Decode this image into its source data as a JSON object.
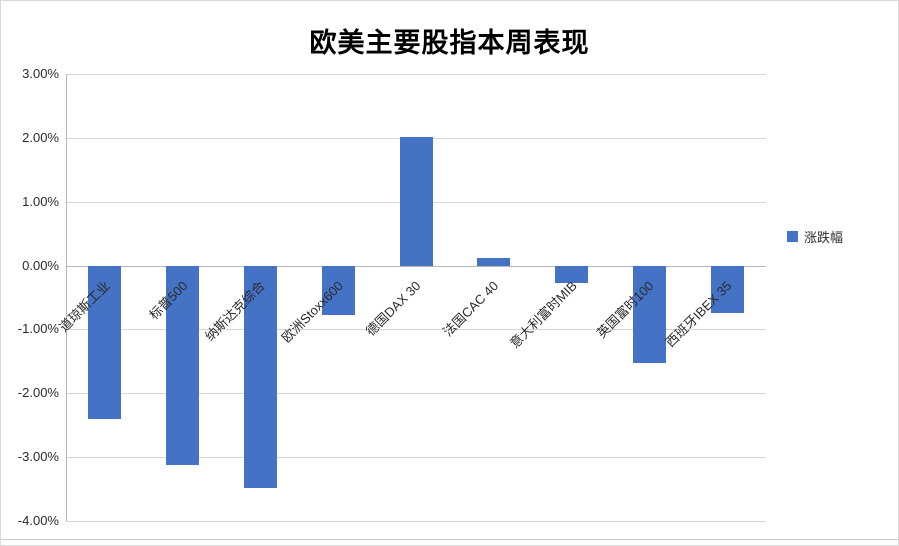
{
  "chart_data": {
    "type": "bar",
    "title": "欧美主要股指本周表现",
    "legend": "涨跌幅",
    "categories": [
      "道琼斯工业",
      "标普500",
      "纳斯达克综合",
      "欧洲Stoxx600",
      "德国DAX 30",
      "法国CAC 40",
      "意大利富时MIB",
      "英国富时100",
      "西班牙IBEX 35"
    ],
    "values": [
      -2.4,
      -3.12,
      -3.47,
      -0.76,
      2.02,
      0.12,
      -0.26,
      -1.52,
      -0.73
    ],
    "xlabel": "",
    "ylabel": "",
    "ylim": [
      -4,
      3
    ],
    "yticks": [
      3,
      2,
      1,
      0,
      -1,
      -2,
      -3,
      -4
    ],
    "ytick_labels": [
      "3.00%",
      "2.00%",
      "1.00%",
      "0.00%",
      "-1.00%",
      "-2.00%",
      "-3.00%",
      "-4.00%"
    ],
    "bar_color": "#4472C4",
    "grid": true,
    "legend_position": "right"
  }
}
